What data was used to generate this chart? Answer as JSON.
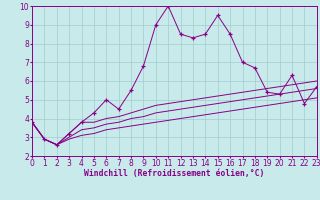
{
  "x": [
    0,
    1,
    2,
    3,
    4,
    5,
    6,
    7,
    8,
    9,
    10,
    11,
    12,
    13,
    14,
    15,
    16,
    17,
    18,
    19,
    20,
    21,
    22,
    23
  ],
  "line1": [
    3.8,
    2.9,
    2.6,
    3.2,
    3.8,
    4.3,
    5.0,
    4.5,
    5.5,
    6.8,
    9.0,
    10.0,
    8.5,
    8.3,
    8.5,
    9.5,
    8.5,
    7.0,
    6.7,
    5.4,
    5.3,
    6.3,
    4.8,
    5.7
  ],
  "line2": [
    3.8,
    2.9,
    2.6,
    3.2,
    3.8,
    3.8,
    4.0,
    4.1,
    4.3,
    4.5,
    4.7,
    4.8,
    4.9,
    5.0,
    5.1,
    5.2,
    5.3,
    5.4,
    5.5,
    5.6,
    5.7,
    5.8,
    5.9,
    6.0
  ],
  "line3": [
    3.8,
    2.9,
    2.6,
    3.0,
    3.4,
    3.5,
    3.7,
    3.8,
    4.0,
    4.1,
    4.3,
    4.4,
    4.5,
    4.6,
    4.7,
    4.8,
    4.9,
    5.0,
    5.1,
    5.2,
    5.3,
    5.4,
    5.5,
    5.6
  ],
  "line4": [
    3.8,
    2.9,
    2.6,
    2.9,
    3.1,
    3.2,
    3.4,
    3.5,
    3.6,
    3.7,
    3.8,
    3.9,
    4.0,
    4.1,
    4.2,
    4.3,
    4.4,
    4.5,
    4.6,
    4.7,
    4.8,
    4.9,
    5.0,
    5.1
  ],
  "color": "#880088",
  "bg_color": "#c8eaea",
  "grid_color": "#a0cccc",
  "xlabel": "Windchill (Refroidissement éolien,°C)",
  "ylim": [
    2,
    10
  ],
  "xlim": [
    0,
    23
  ],
  "yticks": [
    2,
    3,
    4,
    5,
    6,
    7,
    8,
    9,
    10
  ],
  "xticks": [
    0,
    1,
    2,
    3,
    4,
    5,
    6,
    7,
    8,
    9,
    10,
    11,
    12,
    13,
    14,
    15,
    16,
    17,
    18,
    19,
    20,
    21,
    22,
    23
  ]
}
